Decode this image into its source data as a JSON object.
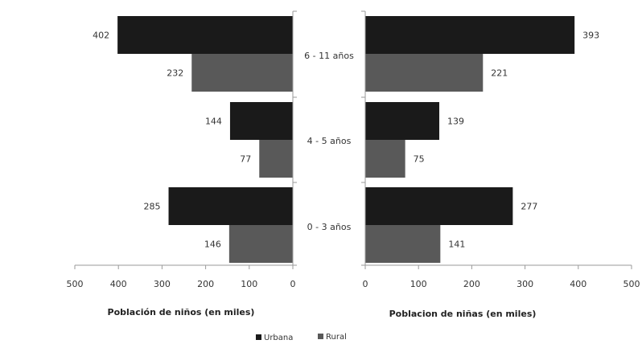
{
  "chart_data": [
    {
      "type": "bar",
      "orientation": "horizontal",
      "reversed_axis": true,
      "categories": [
        "6 - 11 años",
        "4 - 5 años",
        "0 - 3 años"
      ],
      "series": [
        {
          "name": "Urbana",
          "values": [
            402,
            144,
            285
          ],
          "color": "#1a1a1a"
        },
        {
          "name": "Rural",
          "values": [
            232,
            77,
            146
          ],
          "color": "#595959"
        }
      ],
      "xlabel": "Población de niños (en miles)",
      "xlim": [
        0,
        500
      ],
      "xticks": [
        500,
        400,
        300,
        200,
        100,
        0
      ]
    },
    {
      "type": "bar",
      "orientation": "horizontal",
      "categories": [
        "6 - 11 años",
        "4 - 5 años",
        "0 - 3 años"
      ],
      "series": [
        {
          "name": "Urbana",
          "values": [
            393,
            139,
            277
          ],
          "color": "#1a1a1a"
        },
        {
          "name": "Rural",
          "values": [
            221,
            75,
            141
          ],
          "color": "#595959"
        }
      ],
      "xlabel": "Poblacion de niñas (en miles)",
      "xlim": [
        0,
        500
      ],
      "xticks": [
        0,
        100,
        200,
        300,
        400,
        500
      ]
    }
  ],
  "legend": [
    {
      "label": "Urbana",
      "color": "#1a1a1a"
    },
    {
      "label": "Rural",
      "color": "#595959"
    }
  ]
}
